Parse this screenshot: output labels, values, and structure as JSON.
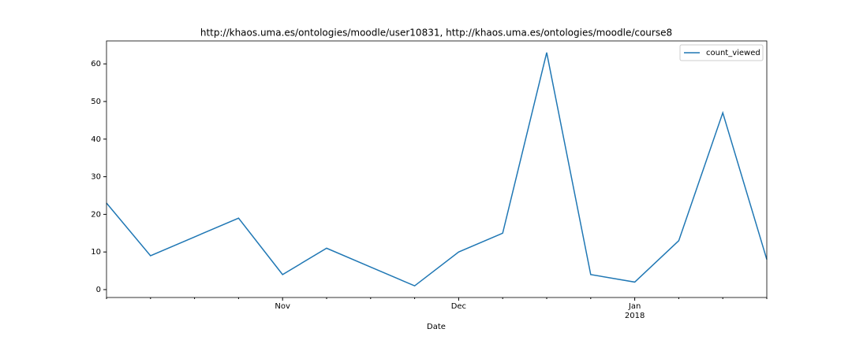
{
  "chart_data": {
    "type": "line",
    "title": "http://khaos.uma.es/ontologies/moodle/user10831, http://khaos.uma.es/ontologies/moodle/course8",
    "x_label": "Date",
    "categories": [
      null,
      null,
      null,
      null,
      "Nov",
      null,
      null,
      null,
      "Dec",
      null,
      null,
      null,
      "Jan\n2018",
      null,
      null,
      null
    ],
    "series": [
      {
        "name": "count_viewed",
        "color": "#1f77b4",
        "values": [
          23,
          9,
          14,
          19,
          4,
          11,
          6,
          1,
          10,
          15,
          63,
          4,
          2,
          13,
          47,
          8
        ]
      }
    ],
    "ylim": [
      -2.1,
      66.1
    ],
    "yticks": [
      0,
      10,
      20,
      30,
      40,
      50,
      60
    ],
    "legend": "upper right"
  }
}
